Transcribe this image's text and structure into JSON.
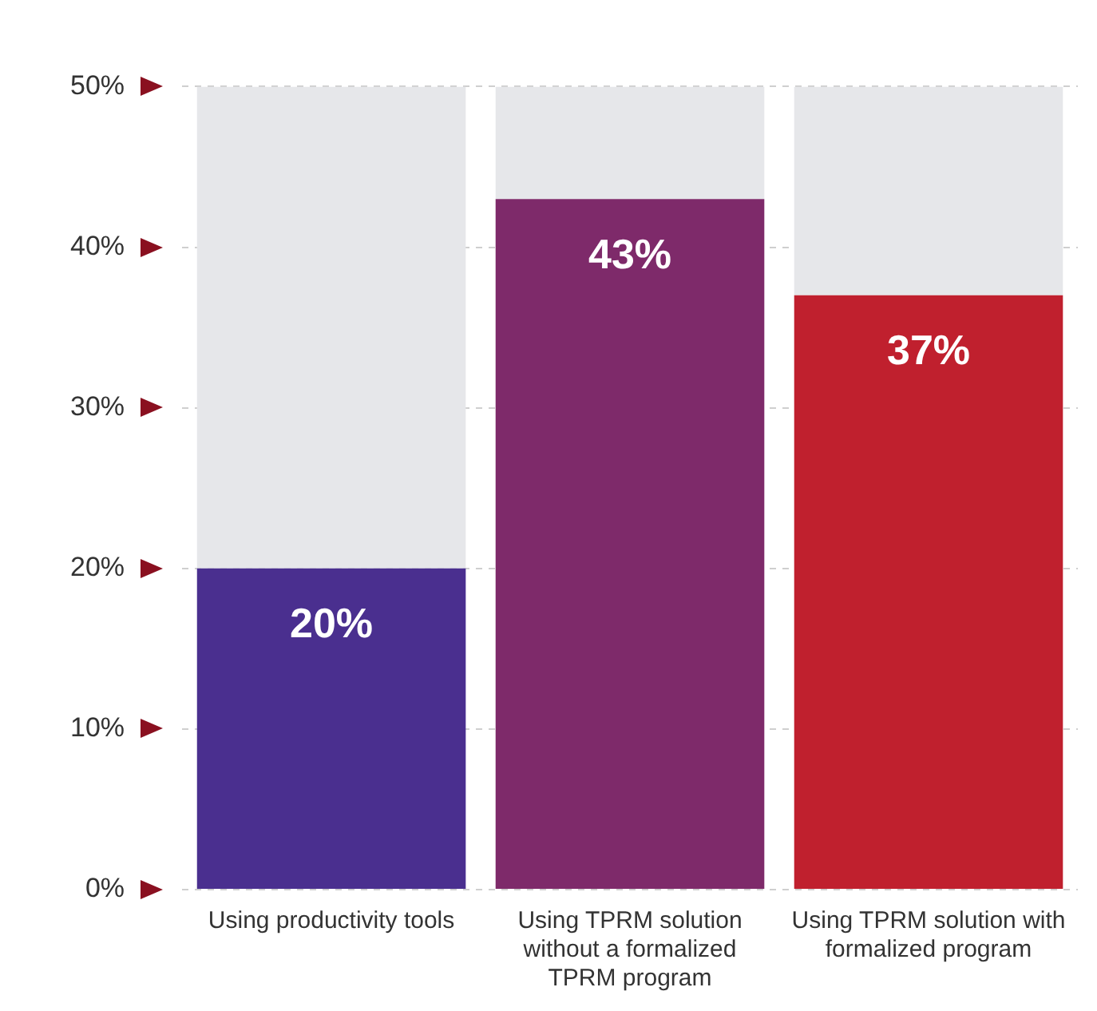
{
  "chart_data": {
    "type": "bar",
    "stacked": true,
    "categories": [
      "Using productivity tools",
      "Using TPRM solution without a formalized TPRM program",
      "Using TPRM solution with formalized program"
    ],
    "series": [
      {
        "colors": [
          "#4a2f8f",
          "#7e2a6a",
          "#c0202e"
        ],
        "values": [
          20,
          43,
          37
        ],
        "value_labels": [
          "20%",
          "43%",
          "37%"
        ]
      },
      {
        "color": "#e6e7ea",
        "values": [
          30,
          7,
          13
        ]
      }
    ],
    "ylim": [
      0,
      50
    ],
    "yticks": [
      {
        "value": 0,
        "label": "0%"
      },
      {
        "value": 10,
        "label": "10%"
      },
      {
        "value": 20,
        "label": "20%"
      },
      {
        "value": 30,
        "label": "30%"
      },
      {
        "value": 40,
        "label": "40%"
      },
      {
        "value": 50,
        "label": "50%"
      }
    ],
    "grid": "y",
    "legend": false
  }
}
